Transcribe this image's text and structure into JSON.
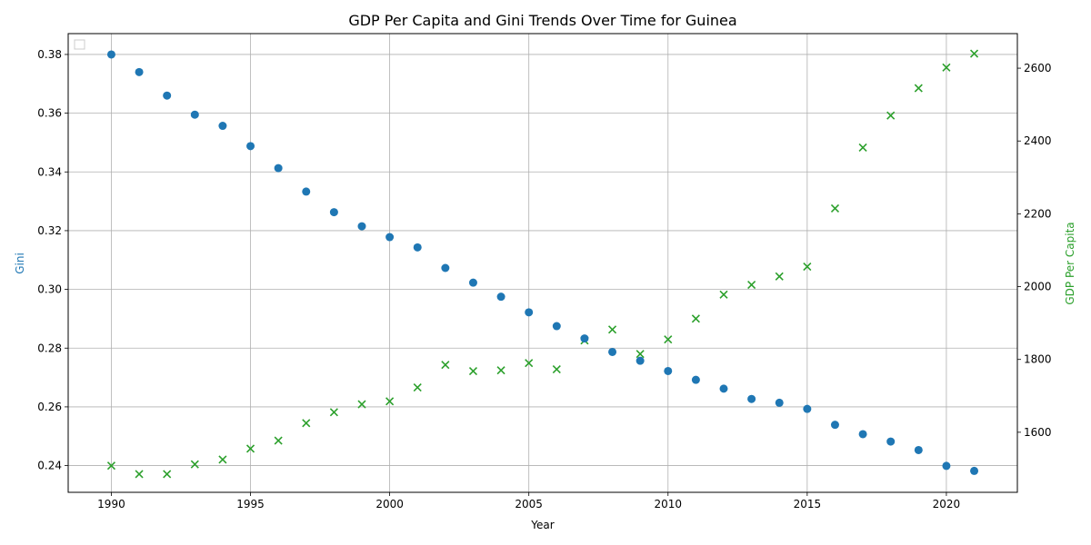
{
  "chart_data": {
    "type": "scatter",
    "title": "GDP Per Capita and Gini Trends Over Time for Guinea",
    "xlabel": "Year",
    "ylabel_left": "Gini",
    "ylabel_right": "GDP Per Capita",
    "xlim": [
      1988.45,
      2022.55
    ],
    "ylim_left": [
      0.2309,
      0.3871
    ],
    "ylim_right": [
      1435,
      2695
    ],
    "xticks": [
      1990,
      1995,
      2000,
      2005,
      2010,
      2015,
      2020
    ],
    "yticks_left": [
      0.24,
      0.26,
      0.28,
      0.3,
      0.32,
      0.34,
      0.36,
      0.38
    ],
    "yticks_left_labels": [
      "0.24",
      "0.26",
      "0.28",
      "0.30",
      "0.32",
      "0.34",
      "0.36",
      "0.38"
    ],
    "yticks_right": [
      1600,
      1800,
      2000,
      2200,
      2400,
      2600
    ],
    "grid": true,
    "legend": "upper-left (empty)",
    "colors": {
      "gini": "#1f77b4",
      "gdp": "#2ca02c"
    },
    "x": [
      1990,
      1991,
      1992,
      1993,
      1994,
      1995,
      1996,
      1997,
      1998,
      1999,
      2000,
      2001,
      2002,
      2003,
      2004,
      2005,
      2006,
      2007,
      2008,
      2009,
      2010,
      2011,
      2012,
      2013,
      2014,
      2015,
      2016,
      2017,
      2018,
      2019,
      2020,
      2021
    ],
    "series": [
      {
        "axis": "left",
        "marker": "circle",
        "values": [
          0.38,
          0.374,
          0.366,
          0.3595,
          0.3557,
          0.3488,
          0.3413,
          0.3333,
          0.3263,
          0.3215,
          0.3178,
          0.3143,
          0.3073,
          0.3023,
          0.2975,
          0.2922,
          0.2875,
          0.2833,
          0.2787,
          0.2757,
          0.2722,
          0.2692,
          0.2662,
          0.2627,
          0.2614,
          0.2593,
          0.2539,
          0.2507,
          0.2482,
          0.2453,
          0.2399,
          0.2382
        ]
      },
      {
        "axis": "right",
        "marker": "x",
        "values": [
          1508,
          1485,
          1485,
          1512,
          1525,
          1555,
          1577,
          1625,
          1655,
          1677,
          1685,
          1723,
          1785,
          1768,
          1770,
          1790,
          1773,
          1852,
          1882,
          1815,
          1855,
          1912,
          1978,
          2005,
          2028,
          2055,
          2215,
          2382,
          2470,
          2545,
          2602,
          2640
        ]
      }
    ]
  }
}
